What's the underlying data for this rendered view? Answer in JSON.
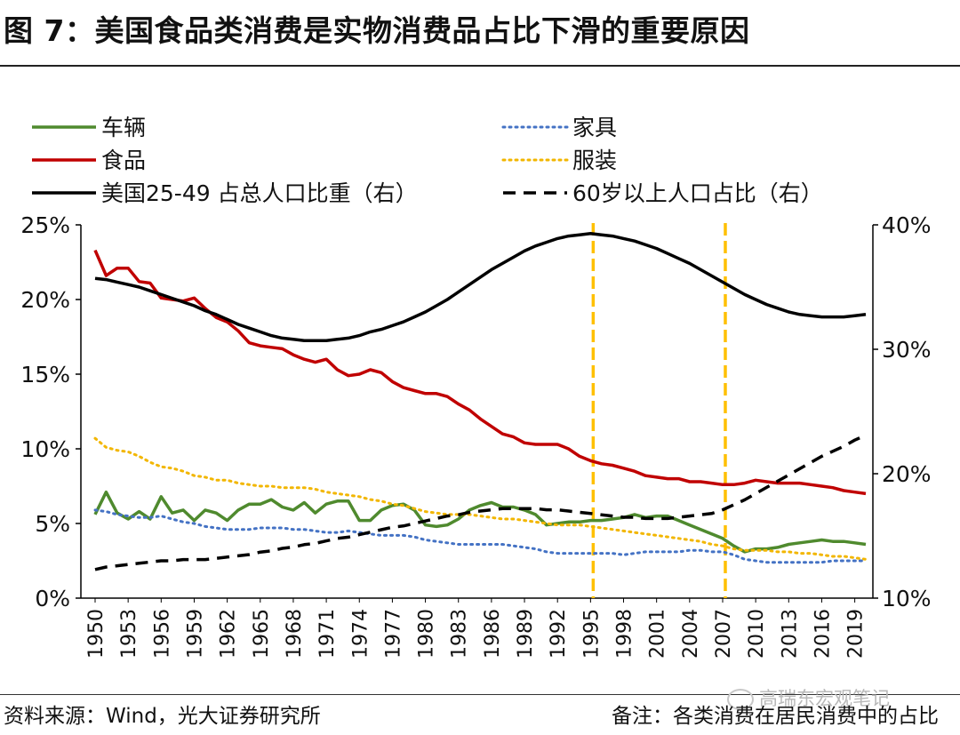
{
  "header": {
    "title": "图 7：美国食品类消费是实物消费品占比下滑的重要原因"
  },
  "footer": {
    "source": "资料来源：Wind，光大证券研究所",
    "note": "备注：各类消费在居民消费中的占比",
    "watermark": "高瑞东宏观笔记"
  },
  "colors": {
    "car": "#4f8a2e",
    "food": "#c00000",
    "furniture": "#4472c4",
    "clothing": "#f2b600",
    "us2549": "#000000",
    "over60": "#000000",
    "vline": "#ffc000"
  },
  "chart_data": {
    "type": "line",
    "title": "",
    "years": [
      1950,
      1951,
      1952,
      1953,
      1954,
      1955,
      1956,
      1957,
      1958,
      1959,
      1960,
      1961,
      1962,
      1963,
      1964,
      1965,
      1966,
      1967,
      1968,
      1969,
      1970,
      1971,
      1972,
      1973,
      1974,
      1975,
      1976,
      1977,
      1978,
      1979,
      1980,
      1981,
      1982,
      1983,
      1984,
      1985,
      1986,
      1987,
      1988,
      1989,
      1990,
      1991,
      1992,
      1993,
      1994,
      1995,
      1996,
      1997,
      1998,
      1999,
      2000,
      2001,
      2002,
      2003,
      2004,
      2005,
      2006,
      2007,
      2008,
      2009,
      2010,
      2011,
      2012,
      2013,
      2014,
      2015,
      2016,
      2017,
      2018,
      2019,
      2020
    ],
    "x_tick_labels": [
      "1950",
      "1953",
      "1956",
      "1959",
      "1962",
      "1965",
      "1968",
      "1971",
      "1974",
      "1977",
      "1980",
      "1983",
      "1986",
      "1989",
      "1992",
      "1995",
      "1998",
      "2001",
      "2004",
      "2007",
      "2010",
      "2013",
      "2016",
      "2019"
    ],
    "y_left": {
      "ylim": [
        0,
        25
      ],
      "ticks": [
        "0%",
        "5%",
        "10%",
        "15%",
        "20%",
        "25%"
      ]
    },
    "y_right": {
      "ylim": [
        10,
        40
      ],
      "ticks": [
        "10%",
        "20%",
        "30%",
        "40%"
      ]
    },
    "vertical_markers": [
      1995,
      2007
    ],
    "legend": [
      "车辆",
      "家具",
      "食品",
      "服装",
      "美国25-49 占总人口比重（右）",
      "60岁以上人口占比（右）"
    ],
    "series": [
      {
        "name": "车辆",
        "axis": "left",
        "style": "solid",
        "values": [
          5.6,
          7.1,
          5.7,
          5.3,
          5.8,
          5.3,
          6.8,
          5.7,
          5.9,
          5.2,
          5.9,
          5.7,
          5.2,
          5.9,
          6.3,
          6.3,
          6.6,
          6.1,
          5.9,
          6.4,
          5.7,
          6.3,
          6.5,
          6.5,
          5.2,
          5.2,
          5.9,
          6.2,
          6.3,
          5.9,
          4.9,
          4.8,
          4.9,
          5.3,
          5.9,
          6.2,
          6.4,
          6.1,
          6.1,
          5.9,
          5.6,
          4.9,
          5.0,
          5.1,
          5.1,
          5.2,
          5.2,
          5.3,
          5.4,
          5.6,
          5.4,
          5.5,
          5.5,
          5.2,
          4.9,
          4.6,
          4.3,
          4.0,
          3.5,
          3.1,
          3.3,
          3.3,
          3.4,
          3.6,
          3.7,
          3.8,
          3.9,
          3.8,
          3.8,
          3.7,
          3.6
        ]
      },
      {
        "name": "家具",
        "axis": "left",
        "style": "dotted",
        "values": [
          5.9,
          5.8,
          5.6,
          5.5,
          5.4,
          5.4,
          5.5,
          5.3,
          5.1,
          5.0,
          4.8,
          4.7,
          4.6,
          4.6,
          4.6,
          4.7,
          4.7,
          4.7,
          4.6,
          4.6,
          4.5,
          4.4,
          4.4,
          4.5,
          4.4,
          4.3,
          4.2,
          4.2,
          4.2,
          4.1,
          3.9,
          3.8,
          3.7,
          3.6,
          3.6,
          3.6,
          3.6,
          3.6,
          3.5,
          3.4,
          3.3,
          3.1,
          3.0,
          3.0,
          3.0,
          3.0,
          3.0,
          3.0,
          2.9,
          3.0,
          3.1,
          3.1,
          3.1,
          3.1,
          3.2,
          3.2,
          3.1,
          3.1,
          2.9,
          2.6,
          2.5,
          2.4,
          2.4,
          2.4,
          2.4,
          2.4,
          2.4,
          2.5,
          2.5,
          2.5,
          2.5
        ]
      },
      {
        "name": "食品",
        "axis": "left",
        "style": "solid",
        "values": [
          23.3,
          21.6,
          22.1,
          22.1,
          21.2,
          21.1,
          20.1,
          20.0,
          19.9,
          20.1,
          19.4,
          18.8,
          18.5,
          17.9,
          17.1,
          16.9,
          16.8,
          16.7,
          16.3,
          16.0,
          15.8,
          16.0,
          15.3,
          14.9,
          15.0,
          15.3,
          15.1,
          14.5,
          14.1,
          13.9,
          13.7,
          13.7,
          13.5,
          13.0,
          12.6,
          12.0,
          11.5,
          11.0,
          10.8,
          10.4,
          10.3,
          10.3,
          10.3,
          10.0,
          9.5,
          9.2,
          9.0,
          8.9,
          8.7,
          8.5,
          8.2,
          8.1,
          8.0,
          8.0,
          7.8,
          7.8,
          7.7,
          7.6,
          7.6,
          7.7,
          7.9,
          7.8,
          7.7,
          7.7,
          7.7,
          7.6,
          7.5,
          7.4,
          7.2,
          7.1,
          7.0
        ]
      },
      {
        "name": "服装",
        "axis": "left",
        "style": "dotted",
        "values": [
          10.7,
          10.1,
          9.9,
          9.8,
          9.5,
          9.1,
          8.8,
          8.7,
          8.5,
          8.2,
          8.1,
          7.9,
          7.9,
          7.7,
          7.6,
          7.5,
          7.5,
          7.4,
          7.4,
          7.4,
          7.3,
          7.1,
          7.0,
          6.9,
          6.8,
          6.6,
          6.5,
          6.3,
          6.2,
          6.0,
          5.8,
          5.7,
          5.6,
          5.6,
          5.6,
          5.5,
          5.4,
          5.3,
          5.3,
          5.2,
          5.1,
          5.0,
          4.9,
          4.9,
          4.9,
          4.8,
          4.7,
          4.6,
          4.5,
          4.4,
          4.3,
          4.2,
          4.1,
          4.0,
          3.9,
          3.8,
          3.6,
          3.5,
          3.3,
          3.2,
          3.2,
          3.2,
          3.1,
          3.1,
          3.0,
          3.0,
          2.9,
          2.8,
          2.8,
          2.7,
          2.6
        ]
      },
      {
        "name": "美国25-49 占总人口比重（右）",
        "axis": "right",
        "style": "solid",
        "values": [
          35.7,
          35.6,
          35.4,
          35.2,
          35.0,
          34.7,
          34.4,
          34.1,
          33.8,
          33.5,
          33.1,
          32.8,
          32.4,
          32.0,
          31.7,
          31.4,
          31.1,
          30.9,
          30.8,
          30.7,
          30.7,
          30.7,
          30.8,
          30.9,
          31.1,
          31.4,
          31.6,
          31.9,
          32.2,
          32.6,
          33.0,
          33.5,
          34.0,
          34.6,
          35.2,
          35.8,
          36.4,
          36.9,
          37.4,
          37.9,
          38.3,
          38.6,
          38.9,
          39.1,
          39.2,
          39.3,
          39.2,
          39.1,
          38.9,
          38.7,
          38.4,
          38.1,
          37.7,
          37.3,
          36.9,
          36.4,
          35.9,
          35.4,
          34.9,
          34.4,
          34.0,
          33.6,
          33.3,
          33.0,
          32.8,
          32.7,
          32.6,
          32.6,
          32.6,
          32.7,
          32.8
        ]
      },
      {
        "name": "60岁以上人口占比（右）",
        "axis": "right",
        "style": "dashed",
        "values": [
          12.3,
          12.5,
          12.6,
          12.7,
          12.8,
          12.9,
          13.0,
          13.0,
          13.1,
          13.1,
          13.1,
          13.2,
          13.3,
          13.4,
          13.5,
          13.7,
          13.8,
          14.0,
          14.1,
          14.3,
          14.4,
          14.6,
          14.8,
          14.9,
          15.1,
          15.3,
          15.5,
          15.7,
          15.8,
          16.0,
          16.2,
          16.4,
          16.6,
          16.7,
          16.9,
          17.0,
          17.1,
          17.2,
          17.2,
          17.2,
          17.2,
          17.1,
          17.1,
          17.0,
          16.9,
          16.8,
          16.7,
          16.6,
          16.5,
          16.5,
          16.4,
          16.4,
          16.4,
          16.5,
          16.6,
          16.7,
          16.8,
          17.1,
          17.5,
          17.9,
          18.4,
          18.9,
          19.4,
          19.9,
          20.4,
          20.9,
          21.4,
          21.8,
          22.2,
          22.7,
          23.1
        ]
      }
    ]
  }
}
